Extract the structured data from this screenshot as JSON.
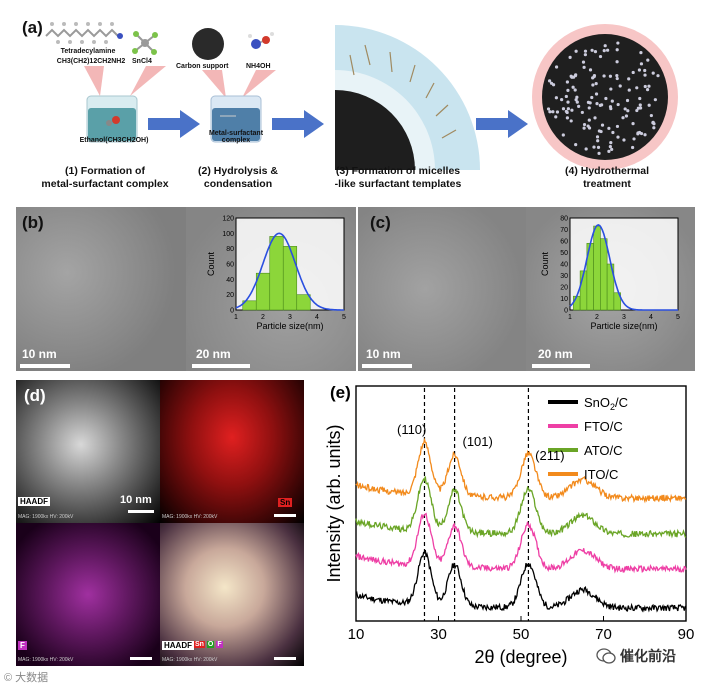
{
  "panel_a": {
    "letter": "(a)",
    "reagent_amine_name": "Tetradecylamine",
    "reagent_amine_formula": "CH3(CH2)12CH2NH2",
    "reagent_sncl4": "SnCl4",
    "reagent_carbon": "Carbon support",
    "reagent_nh4oh": "NH4OH",
    "beaker1_label": "Ethanol(CH3CH2OH)",
    "beaker2_label": "Metal-surfactant complex",
    "step1_line1": "(1) Formation of",
    "step1_line2": "metal-surfactant complex",
    "step2_line1": "(2) Hydrolysis &",
    "step2_line2": "condensation",
    "step3_line1": "(3) Formation of micelles",
    "step3_line2": "-like surfactant templates",
    "step4_line1": "(4) Hydrothermal",
    "step4_line2": "treatment"
  },
  "panel_b": {
    "letter": "(b)",
    "scale_left": "10 nm",
    "scale_right": "20 nm"
  },
  "panel_c": {
    "letter": "(c)",
    "scale_left": "10 nm",
    "scale_right": "20 nm"
  },
  "panel_d": {
    "letter": "(d)",
    "haadf_label": "HAADF",
    "scale": "10 nm",
    "sn_label": "Sn",
    "f_label": "F",
    "overlay_label": "HAADF",
    "overlay_legend": [
      "Sn",
      "O",
      "F"
    ],
    "micro_text": "MAG: 1900kx  HV: 200kV"
  },
  "chart_data": [
    {
      "panel": "(b) inset",
      "type": "bar",
      "xlabel": "Particle size(nm)",
      "ylabel": "Count",
      "xlim": [
        1,
        5
      ],
      "ylim": [
        0,
        120
      ],
      "xticks": [
        1,
        2,
        3,
        4,
        5
      ],
      "yticks": [
        0,
        20,
        40,
        60,
        80,
        100,
        120
      ],
      "bins": [
        1.5,
        2.0,
        2.5,
        3.0,
        3.5
      ],
      "values": [
        12,
        48,
        96,
        83,
        20
      ],
      "fit_curve": {
        "mean": 2.6,
        "sigma": 0.6,
        "peak": 100
      }
    },
    {
      "panel": "(c) inset",
      "type": "bar",
      "xlabel": "Particle size(nm)",
      "ylabel": "Count",
      "xlim": [
        1,
        5
      ],
      "ylim": [
        0,
        80
      ],
      "xticks": [
        1,
        2,
        3,
        4,
        5
      ],
      "yticks": [
        0,
        10,
        20,
        30,
        40,
        50,
        60,
        70,
        80
      ],
      "bins": [
        1.25,
        1.5,
        1.75,
        2.0,
        2.25,
        2.5,
        2.75
      ],
      "values": [
        12,
        34,
        58,
        73,
        62,
        40,
        15
      ],
      "fit_curve": {
        "mean": 2.05,
        "sigma": 0.42,
        "peak": 74
      }
    },
    {
      "panel": "(e)",
      "type": "line",
      "xlabel": "2θ (degree)",
      "ylabel": "Intensity (arb. units)",
      "xlim": [
        10,
        90
      ],
      "xticks": [
        10,
        30,
        50,
        70,
        90
      ],
      "reference_lines": [
        26.6,
        33.9,
        51.8
      ],
      "peak_labels": [
        "(110)",
        "(101)",
        "(211)"
      ],
      "series": [
        {
          "name": "SnO2/C",
          "color": "#000000",
          "offset": 0
        },
        {
          "name": "FTO/C",
          "color": "#ee3fa5",
          "offset": 1
        },
        {
          "name": "ATO/C",
          "color": "#6aa526",
          "offset": 2
        },
        {
          "name": "ITO/C",
          "color": "#f28a1c",
          "offset": 3
        }
      ],
      "legend_location": "top-right"
    }
  ],
  "panel_e": {
    "letter": "(e)",
    "peak_110": "(110)",
    "peak_101": "(101)",
    "peak_211": "(211)",
    "legend": [
      "SnO2/C",
      "FTO/C",
      "ATO/C",
      "ITO/C"
    ],
    "xlabel": "2θ (degree)",
    "ylabel": "Intensity (arb. units)",
    "xticks": [
      "10",
      "30",
      "50",
      "70",
      "90"
    ]
  },
  "watermark": {
    "left": "© 大数据",
    "right": "催化前沿"
  },
  "colors": {
    "arrow": "#4a72c8",
    "beaker": "#5aa0a8",
    "sn_red": "#e02020",
    "f_magenta": "#c030c0",
    "hist_bar": "#8cd63a",
    "fit": "#2a4fe0"
  }
}
